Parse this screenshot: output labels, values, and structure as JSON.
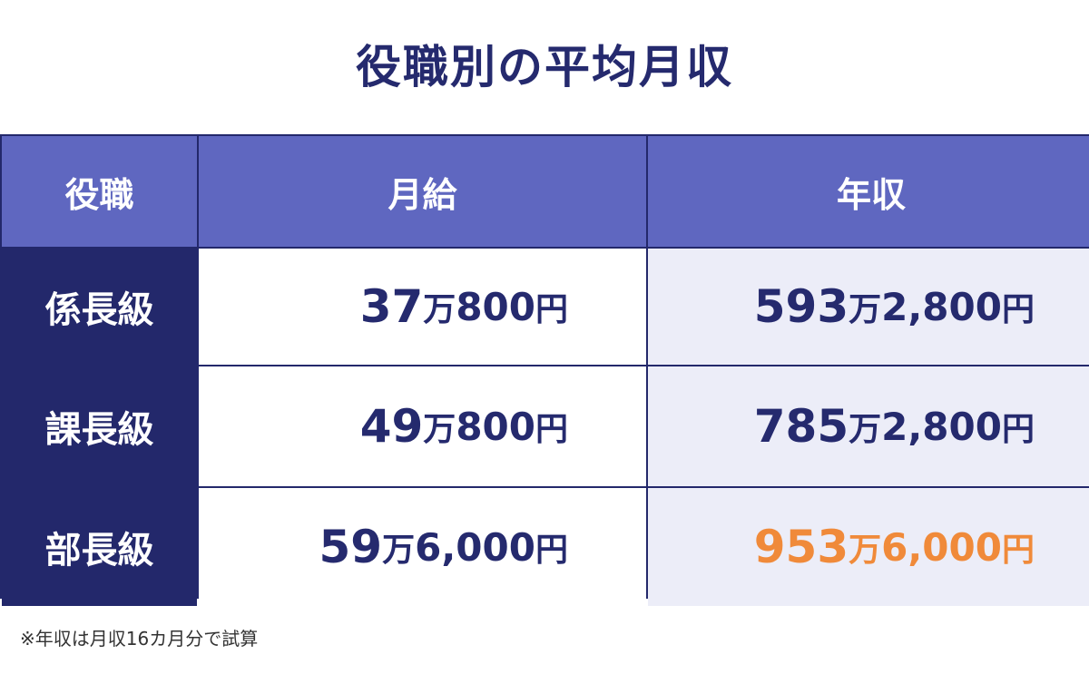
{
  "header": {
    "title": "役職別の平均月収"
  },
  "table": {
    "columns": [
      "役職",
      "月給",
      "年収"
    ],
    "rows": [
      [
        "係長級",
        "37万800円",
        "593万2,800円"
      ],
      [
        "課長級",
        "49万800円",
        "785万2,800円"
      ],
      [
        "部長級",
        "59万6,000円",
        "953万6,000円"
      ]
    ]
  },
  "footnote": "※年収は月収16カ月分で試算"
}
